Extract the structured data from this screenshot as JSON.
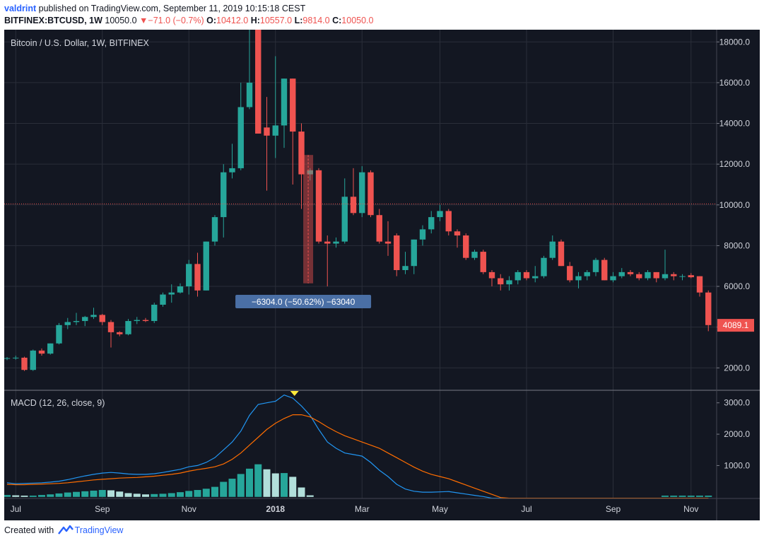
{
  "header": {
    "user": "valdrint",
    "published_text": "published on TradingView.com, September 11, 2019 10:15:18 CEST",
    "symbol": "BITFINEX:BTCUSD, 1W",
    "last": "10050.0",
    "change": "−71.0 (−0.7%)",
    "o_label": "O:",
    "o": "10412.0",
    "h_label": "H:",
    "h": "10557.0",
    "l_label": "L:",
    "l": "9814.0",
    "c_label": "C:",
    "c": "10050.0"
  },
  "footer": {
    "created_with": "Created with",
    "brand": "TradingView"
  },
  "colors": {
    "up": "#26a69a",
    "down": "#ef5350",
    "macd": "#2196f3",
    "signal": "#ff6d00",
    "hist_up_strong": "#26a69a",
    "hist_up_weak": "#b2dfdb",
    "background": "#131722"
  },
  "chart_data": [
    {
      "type": "candlestick",
      "title": "Bitcoin / U.S. Dollar, 1W, BITFINEX",
      "x_ticks": [
        "Jul",
        "Sep",
        "Nov",
        "2018",
        "Mar",
        "May",
        "Jul",
        "Sep",
        "Nov"
      ],
      "y_ticks": [
        "2000.0",
        "4000.0",
        "6000.0",
        "8000.0",
        "10000.0",
        "12000.0",
        "14000.0",
        "16000.0",
        "18000.0"
      ],
      "ylim": [
        900,
        18600
      ],
      "price_line": 10050,
      "last_price_label": "4089.1",
      "measure": {
        "label": "−6304.0 (−50.62%) −63040",
        "from": 12450,
        "to": 6150
      },
      "candles": [
        {
          "o": 2450,
          "h": 2530,
          "l": 2380,
          "c": 2480
        },
        {
          "o": 2480,
          "h": 2600,
          "l": 2400,
          "c": 2500
        },
        {
          "o": 2500,
          "h": 2550,
          "l": 1850,
          "c": 1900
        },
        {
          "o": 1900,
          "h": 2900,
          "l": 1850,
          "c": 2850
        },
        {
          "o": 2850,
          "h": 2950,
          "l": 2600,
          "c": 2700
        },
        {
          "o": 2700,
          "h": 3200,
          "l": 2650,
          "c": 3200
        },
        {
          "o": 3200,
          "h": 4200,
          "l": 3150,
          "c": 4100
        },
        {
          "o": 4100,
          "h": 4450,
          "l": 3900,
          "c": 4250
        },
        {
          "o": 4250,
          "h": 4700,
          "l": 4100,
          "c": 4300
        },
        {
          "o": 4300,
          "h": 4550,
          "l": 4050,
          "c": 4500
        },
        {
          "o": 4500,
          "h": 4950,
          "l": 4400,
          "c": 4600
        },
        {
          "o": 4600,
          "h": 4650,
          "l": 4100,
          "c": 4250
        },
        {
          "o": 4250,
          "h": 4350,
          "l": 3000,
          "c": 3750
        },
        {
          "o": 3750,
          "h": 3800,
          "l": 3550,
          "c": 3650
        },
        {
          "o": 3650,
          "h": 4400,
          "l": 3600,
          "c": 4300
        },
        {
          "o": 4300,
          "h": 4500,
          "l": 4150,
          "c": 4350
        },
        {
          "o": 4350,
          "h": 4450,
          "l": 4250,
          "c": 4300
        },
        {
          "o": 4300,
          "h": 5200,
          "l": 4200,
          "c": 5100
        },
        {
          "o": 5100,
          "h": 5700,
          "l": 5000,
          "c": 5600
        },
        {
          "o": 5600,
          "h": 6100,
          "l": 5200,
          "c": 5700
        },
        {
          "o": 5700,
          "h": 6150,
          "l": 5650,
          "c": 6000
        },
        {
          "o": 6000,
          "h": 7300,
          "l": 5600,
          "c": 7100
        },
        {
          "o": 7100,
          "h": 7650,
          "l": 5500,
          "c": 5800
        },
        {
          "o": 5800,
          "h": 8200,
          "l": 5800,
          "c": 8200
        },
        {
          "o": 8200,
          "h": 9500,
          "l": 8000,
          "c": 9400
        },
        {
          "o": 9400,
          "h": 12000,
          "l": 8400,
          "c": 11600
        },
        {
          "o": 11600,
          "h": 13000,
          "l": 11300,
          "c": 11800
        },
        {
          "o": 11800,
          "h": 16000,
          "l": 11700,
          "c": 14800
        },
        {
          "o": 14800,
          "h": 19900,
          "l": 14700,
          "c": 16000
        },
        {
          "o": 19900,
          "h": 19900,
          "l": 13500,
          "c": 13500
        },
        {
          "o": 13800,
          "h": 15300,
          "l": 10700,
          "c": 13400
        },
        {
          "o": 13400,
          "h": 17300,
          "l": 12300,
          "c": 13900
        },
        {
          "o": 13900,
          "h": 16200,
          "l": 12800,
          "c": 16200
        },
        {
          "o": 16200,
          "h": 16200,
          "l": 11000,
          "c": 13600
        },
        {
          "o": 13600,
          "h": 14000,
          "l": 9800,
          "c": 11500
        },
        {
          "o": 11500,
          "h": 11800,
          "l": 11200,
          "c": 11700
        },
        {
          "o": 11700,
          "h": 11800,
          "l": 8100,
          "c": 8200
        },
        {
          "o": 8200,
          "h": 8500,
          "l": 6000,
          "c": 8100
        },
        {
          "o": 8100,
          "h": 8400,
          "l": 7900,
          "c": 8200
        },
        {
          "o": 8200,
          "h": 11300,
          "l": 8100,
          "c": 10400
        },
        {
          "o": 10400,
          "h": 11800,
          "l": 9500,
          "c": 9600
        },
        {
          "o": 9600,
          "h": 11900,
          "l": 9400,
          "c": 11600
        },
        {
          "o": 11600,
          "h": 11700,
          "l": 9400,
          "c": 9500
        },
        {
          "o": 9500,
          "h": 9800,
          "l": 8100,
          "c": 8200
        },
        {
          "o": 8200,
          "h": 9200,
          "l": 7500,
          "c": 8100
        },
        {
          "o": 8500,
          "h": 8600,
          "l": 6500,
          "c": 6800
        },
        {
          "o": 6800,
          "h": 7700,
          "l": 6600,
          "c": 7000
        },
        {
          "o": 7000,
          "h": 8300,
          "l": 6600,
          "c": 8300
        },
        {
          "o": 8300,
          "h": 9000,
          "l": 8000,
          "c": 8800
        },
        {
          "o": 8800,
          "h": 9700,
          "l": 8600,
          "c": 9400
        },
        {
          "o": 9400,
          "h": 10000,
          "l": 9200,
          "c": 9700
        },
        {
          "o": 9700,
          "h": 9800,
          "l": 8500,
          "c": 8700
        },
        {
          "o": 8700,
          "h": 8800,
          "l": 7900,
          "c": 8500
        },
        {
          "o": 8500,
          "h": 8600,
          "l": 7300,
          "c": 7400
        },
        {
          "o": 7400,
          "h": 7800,
          "l": 7300,
          "c": 7700
        },
        {
          "o": 7700,
          "h": 7800,
          "l": 6600,
          "c": 6700
        },
        {
          "o": 6700,
          "h": 6800,
          "l": 6000,
          "c": 6400
        },
        {
          "o": 6400,
          "h": 6600,
          "l": 5800,
          "c": 6100
        },
        {
          "o": 6100,
          "h": 6500,
          "l": 5800,
          "c": 6300
        },
        {
          "o": 6300,
          "h": 6800,
          "l": 6100,
          "c": 6700
        },
        {
          "o": 6700,
          "h": 6800,
          "l": 6300,
          "c": 6400
        },
        {
          "o": 6400,
          "h": 7000,
          "l": 6200,
          "c": 6500
        },
        {
          "o": 6500,
          "h": 7500,
          "l": 6400,
          "c": 7400
        },
        {
          "o": 7400,
          "h": 8500,
          "l": 7300,
          "c": 8200
        },
        {
          "o": 8200,
          "h": 8300,
          "l": 7000,
          "c": 7000
        },
        {
          "o": 7000,
          "h": 7200,
          "l": 6200,
          "c": 6300
        },
        {
          "o": 6300,
          "h": 6700,
          "l": 5900,
          "c": 6500
        },
        {
          "o": 6500,
          "h": 6800,
          "l": 6300,
          "c": 6700
        },
        {
          "o": 6700,
          "h": 7400,
          "l": 6500,
          "c": 7300
        },
        {
          "o": 7300,
          "h": 7400,
          "l": 6300,
          "c": 6300
        },
        {
          "o": 6300,
          "h": 6700,
          "l": 6200,
          "c": 6500
        },
        {
          "o": 6500,
          "h": 6900,
          "l": 6400,
          "c": 6700
        },
        {
          "o": 6700,
          "h": 6800,
          "l": 6500,
          "c": 6600
        },
        {
          "o": 6600,
          "h": 6700,
          "l": 6300,
          "c": 6400
        },
        {
          "o": 6400,
          "h": 6800,
          "l": 6300,
          "c": 6700
        },
        {
          "o": 6700,
          "h": 6700,
          "l": 6200,
          "c": 6400
        },
        {
          "o": 6400,
          "h": 7800,
          "l": 6300,
          "c": 6600
        },
        {
          "o": 6600,
          "h": 6700,
          "l": 6300,
          "c": 6500
        },
        {
          "o": 6500,
          "h": 6600,
          "l": 6300,
          "c": 6500
        },
        {
          "o": 6550,
          "h": 6650,
          "l": 6400,
          "c": 6450
        },
        {
          "o": 6500,
          "h": 6500,
          "l": 5500,
          "c": 5700
        },
        {
          "o": 5700,
          "h": 5800,
          "l": 3800,
          "c": 4100
        }
      ]
    },
    {
      "type": "line",
      "title": "MACD (12, 26, close, 9)",
      "y_ticks": [
        "1000.0",
        "2000.0",
        "3000.0"
      ],
      "ylim": [
        -50,
        3400
      ],
      "series": [
        {
          "name": "MACD",
          "values": [
            450,
            420,
            430,
            440,
            450,
            470,
            500,
            550,
            610,
            670,
            720,
            760,
            780,
            760,
            730,
            720,
            720,
            740,
            780,
            830,
            880,
            960,
            1000,
            1100,
            1250,
            1500,
            1750,
            2100,
            2600,
            2950,
            3000,
            3050,
            3250,
            3150,
            2900,
            2600,
            2150,
            1750,
            1550,
            1400,
            1350,
            1300,
            1100,
            850,
            650,
            400,
            250,
            180,
            150,
            150,
            160,
            170,
            130,
            90,
            50,
            10,
            -40,
            -40,
            -40,
            -40,
            -40,
            -40,
            -40,
            -40,
            -40,
            -40,
            -40,
            -40,
            -40,
            -40,
            -40,
            -40,
            -40,
            -40,
            -40,
            -40,
            -40,
            -40,
            -40,
            -40,
            -40,
            -40
          ]
        },
        {
          "name": "Signal",
          "values": [
            400,
            390,
            390,
            400,
            410,
            420,
            430,
            450,
            480,
            510,
            540,
            560,
            580,
            600,
            610,
            620,
            640,
            660,
            690,
            720,
            760,
            820,
            870,
            910,
            960,
            1050,
            1200,
            1400,
            1650,
            1900,
            2150,
            2350,
            2500,
            2620,
            2620,
            2550,
            2400,
            2230,
            2080,
            1950,
            1850,
            1750,
            1650,
            1550,
            1400,
            1250,
            1100,
            950,
            820,
            720,
            650,
            580,
            480,
            380,
            280,
            180,
            80,
            -20,
            -40,
            -40,
            -40,
            -40,
            -40,
            -40,
            -40,
            -40,
            -40,
            -40,
            -40,
            -40,
            -40,
            -40,
            -40,
            -40,
            -40,
            -40,
            -40,
            -40,
            -40,
            -40,
            -40,
            -40
          ]
        }
      ],
      "histogram": [
        60,
        50,
        40,
        40,
        60,
        80,
        110,
        140,
        160,
        180,
        200,
        220,
        210,
        170,
        120,
        100,
        80,
        90,
        100,
        120,
        150,
        190,
        220,
        260,
        320,
        480,
        580,
        730,
        900,
        1040,
        880,
        750,
        760,
        640,
        300,
        50,
        0,
        0,
        0,
        0,
        0,
        0,
        0,
        0,
        0,
        0,
        0,
        0,
        0,
        0,
        0,
        0,
        0,
        0,
        0,
        0,
        0,
        0,
        0,
        0,
        0,
        0,
        0,
        0,
        0,
        0,
        0,
        0,
        0,
        0,
        0,
        0,
        0,
        0,
        0,
        0,
        40,
        40,
        40,
        40,
        40,
        40
      ]
    }
  ]
}
